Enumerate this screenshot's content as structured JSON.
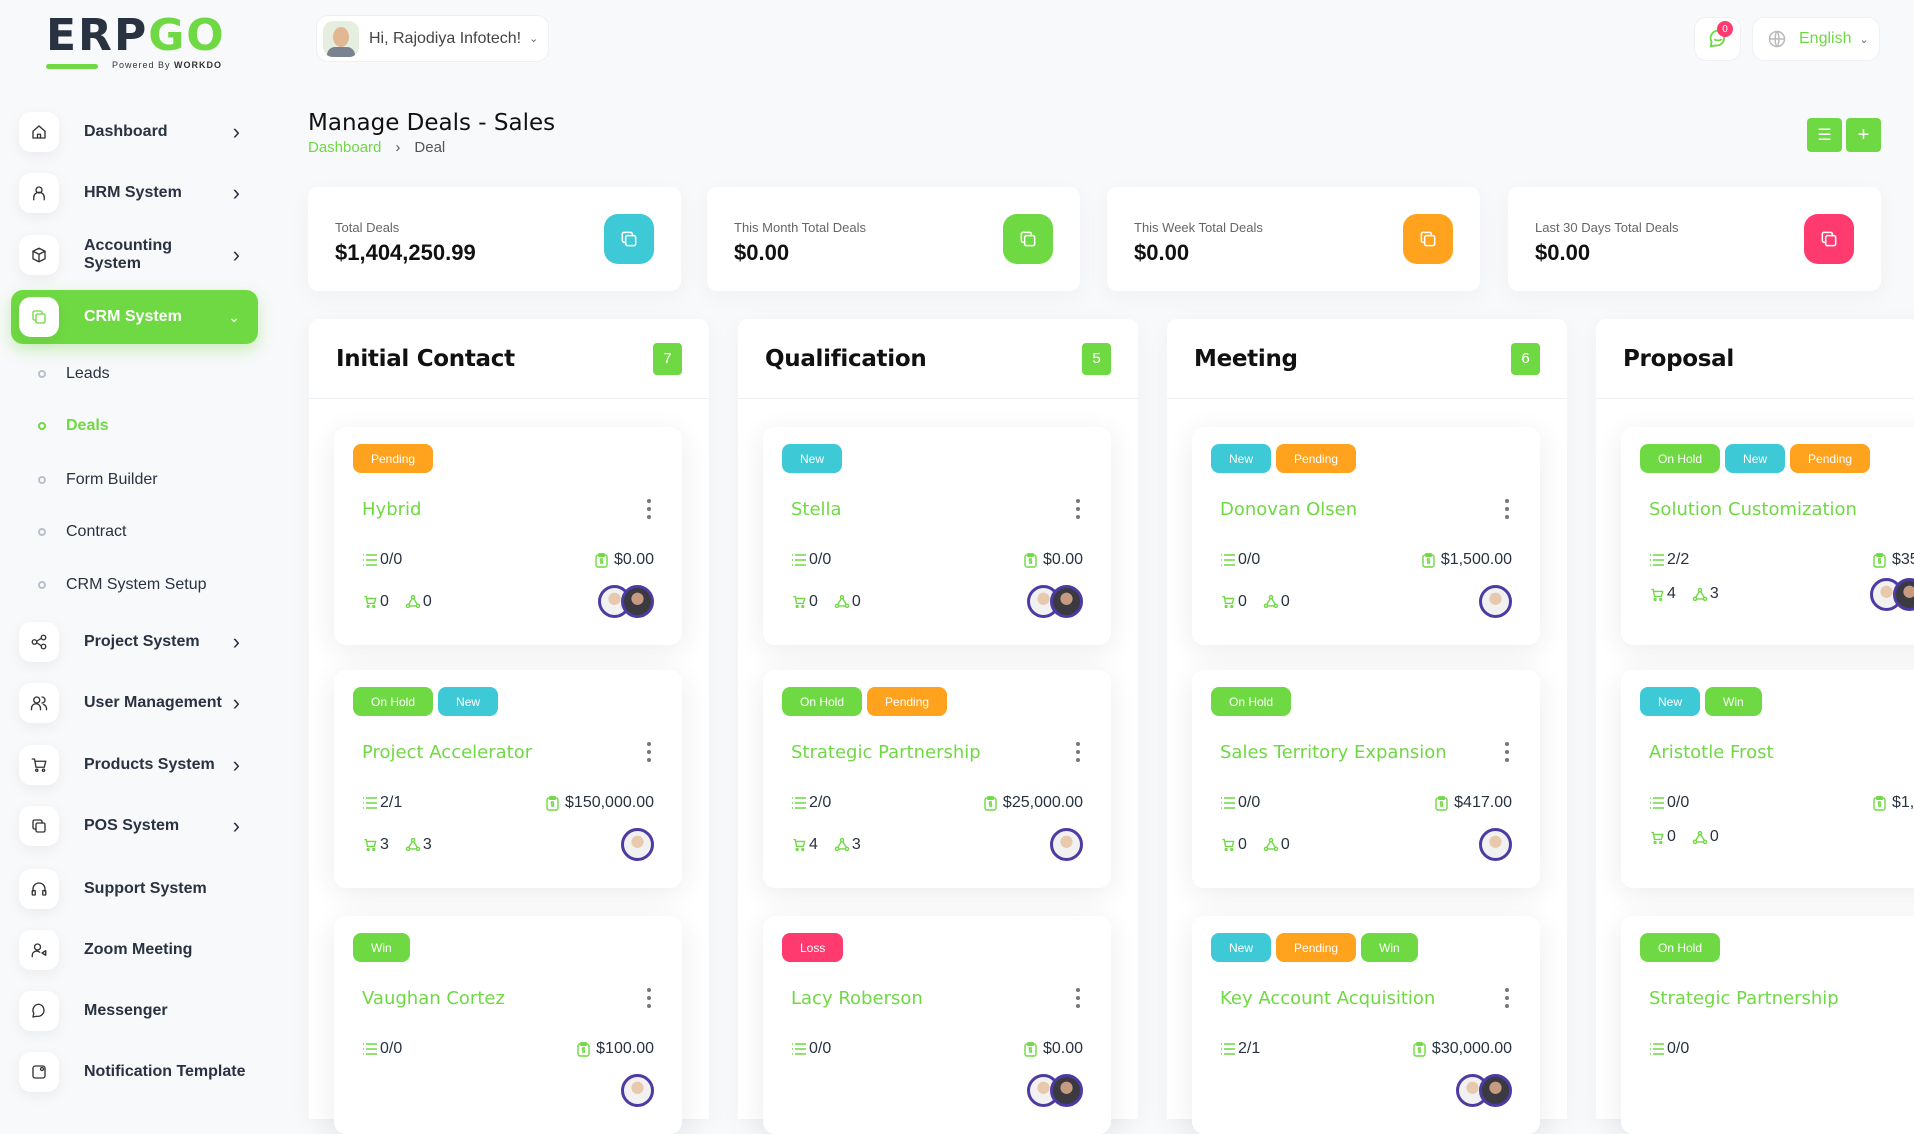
{
  "logo": {
    "text_a": "ERP",
    "text_b": "GO",
    "powered": "Powered By",
    "brand": "WORKDO"
  },
  "user": {
    "greeting": "Hi, Rajodiya Infotech!"
  },
  "notifications": {
    "count": "0"
  },
  "language": {
    "label": "English"
  },
  "colors": {
    "primary": "#6fd943",
    "info": "#3ec9d6",
    "warning": "#ffa21d",
    "danger": "#ff3a6e",
    "avatar_ring": "#4d3aa3"
  },
  "sidebar": {
    "items": [
      {
        "label": "Dashboard",
        "icon": "home-icon",
        "chevron": true
      },
      {
        "label": "HRM System",
        "icon": "user-icon",
        "chevron": true
      },
      {
        "label": "Accounting System",
        "icon": "box-icon",
        "chevron": true
      },
      {
        "label": "CRM System",
        "icon": "layers-icon",
        "chevron": true,
        "active": true,
        "sub": [
          {
            "label": "Leads"
          },
          {
            "label": "Deals",
            "active": true
          },
          {
            "label": "Form Builder"
          },
          {
            "label": "Contract"
          },
          {
            "label": "CRM System Setup"
          }
        ]
      },
      {
        "label": "Project System",
        "icon": "share-icon",
        "chevron": true
      },
      {
        "label": "User Management",
        "icon": "users-icon",
        "chevron": true
      },
      {
        "label": "Products System",
        "icon": "cart-icon",
        "chevron": true
      },
      {
        "label": "POS System",
        "icon": "layers-icon",
        "chevron": true
      },
      {
        "label": "Support System",
        "icon": "headphones-icon",
        "chevron": false
      },
      {
        "label": "Zoom Meeting",
        "icon": "user-video-icon",
        "chevron": false
      },
      {
        "label": "Messenger",
        "icon": "message-icon",
        "chevron": false
      },
      {
        "label": "Notification Template",
        "icon": "notification-icon",
        "chevron": false
      }
    ]
  },
  "page": {
    "title": "Manage Deals - Sales",
    "breadcrumb": [
      "Dashboard",
      "Deal"
    ]
  },
  "stats": [
    {
      "label": "Total Deals",
      "value": "$1,404,250.99",
      "color": "#3ec9d6"
    },
    {
      "label": "This Month Total Deals",
      "value": "$0.00",
      "color": "#6fd943"
    },
    {
      "label": "This Week Total Deals",
      "value": "$0.00",
      "color": "#ffa21d"
    },
    {
      "label": "Last 30 Days Total Deals",
      "value": "$0.00",
      "color": "#ff3a6e"
    }
  ],
  "columns": [
    {
      "title": "Initial Contact",
      "count": "7",
      "cards": [
        {
          "badges": [
            "Pending"
          ],
          "title": "Hybrid",
          "tasks": "0/0",
          "amount": "$0.00",
          "products": "0",
          "sources": "0",
          "avatars": 2
        },
        {
          "badges": [
            "On Hold",
            "New"
          ],
          "title": "Project Accelerator",
          "tasks": "2/1",
          "amount": "$150,000.00",
          "products": "3",
          "sources": "3",
          "avatars": 1
        },
        {
          "badges": [
            "Win"
          ],
          "title": "Vaughan Cortez",
          "tasks": "0/0",
          "amount": "$100.00",
          "avatars": 1
        }
      ]
    },
    {
      "title": "Qualification",
      "count": "5",
      "cards": [
        {
          "badges": [
            "New"
          ],
          "title": "Stella",
          "tasks": "0/0",
          "amount": "$0.00",
          "products": "0",
          "sources": "0",
          "avatars": 2
        },
        {
          "badges": [
            "On Hold",
            "Pending"
          ],
          "title": "Strategic Partnership",
          "tasks": "2/0",
          "amount": "$25,000.00",
          "products": "4",
          "sources": "3",
          "avatars": 1
        },
        {
          "badges": [
            "Loss"
          ],
          "title": "Lacy Roberson",
          "tasks": "0/0",
          "amount": "$0.00",
          "avatars": 2
        }
      ]
    },
    {
      "title": "Meeting",
      "count": "6",
      "cards": [
        {
          "badges": [
            "New",
            "Pending"
          ],
          "title": "Donovan Olsen",
          "tasks": "0/0",
          "amount": "$1,500.00",
          "products": "0",
          "sources": "0",
          "avatars": 1
        },
        {
          "badges": [
            "On Hold"
          ],
          "title": "Sales Territory Expansion",
          "tasks": "0/0",
          "amount": "$417.00",
          "products": "0",
          "sources": "0",
          "avatars": 1
        },
        {
          "badges": [
            "New",
            "Pending",
            "Win"
          ],
          "title": "Key Account Acquisition",
          "tasks": "2/1",
          "amount": "$30,000.00",
          "avatars": 2
        }
      ]
    },
    {
      "title": "Proposal",
      "cards": [
        {
          "badges": [
            "On Hold",
            "New",
            "Pending"
          ],
          "title": "Solution Customization",
          "tasks": "2/2",
          "amount": "$35,",
          "products": "4",
          "sources": "3",
          "avatars": 2
        },
        {
          "badges": [
            "New",
            "Win"
          ],
          "title": "Aristotle Frost",
          "tasks": "0/0",
          "amount": "$1,",
          "products": "0",
          "sources": "0",
          "avatars": 0
        },
        {
          "badges": [
            "On Hold"
          ],
          "title": "Strategic Partnership",
          "tasks": "0/0"
        }
      ]
    }
  ]
}
